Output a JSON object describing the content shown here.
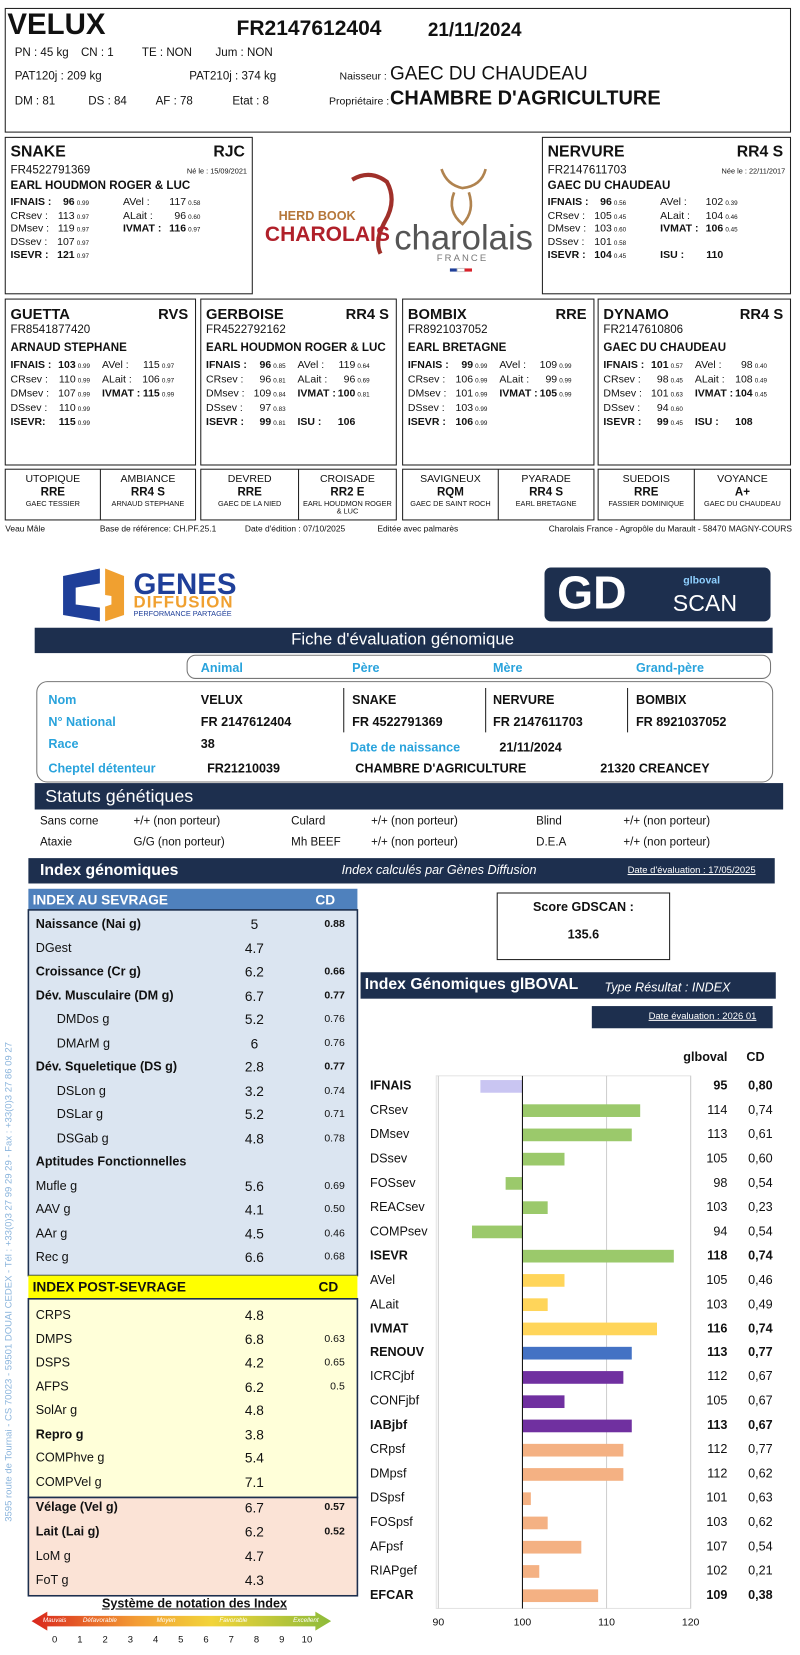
{
  "header": {
    "name": "VELUX",
    "national_id": "FR2147612404",
    "birth_date": "21/11/2024",
    "fields": [
      "PN : 45 kg",
      "CN : 1",
      "TE : NON",
      "Jum : NON",
      "PAT120j : 209 kg",
      "PAT210j : 374 kg",
      "DM : 81",
      "DS : 84",
      "AF : 78",
      "Etat : 8"
    ],
    "breeder_label": "Naisseur :",
    "breeder": "GAEC DU CHAUDEAU",
    "owner_label": "Propriétaire :",
    "owner": "CHAMBRE D'AGRICULTURE"
  },
  "pedigree": {
    "sire": {
      "name": "SNAKE",
      "code": "RJC",
      "id": "FR4522791369",
      "birth": "Né le : 15/09/2021",
      "breeder": "EARL HOUDMON ROGER & LUC",
      "left": [
        [
          "IFNAIS :",
          "96",
          "0.99"
        ],
        [
          "CRsev :",
          "113",
          "0.97"
        ],
        [
          "DMsev :",
          "119",
          "0.97"
        ],
        [
          "DSsev :",
          "107",
          "0.97"
        ],
        [
          "ISEVR :",
          "121",
          "0.97"
        ]
      ],
      "right": [
        [
          "AVel :",
          "117",
          "0.58"
        ],
        [
          "ALait :",
          "96",
          "0.60"
        ],
        [
          "IVMAT :",
          "116",
          "0.97"
        ]
      ]
    },
    "dam": {
      "name": "NERVURE",
      "code": "RR4 S",
      "id": "FR2147611703",
      "birth": "Née le : 22/11/2017",
      "breeder": "GAEC DU CHAUDEAU",
      "left": [
        [
          "IFNAIS :",
          "96",
          "0.56"
        ],
        [
          "CRsev :",
          "105",
          "0.45"
        ],
        [
          "DMsev :",
          "103",
          "0.60"
        ],
        [
          "DSsev :",
          "101",
          "0.58"
        ],
        [
          "ISEVR :",
          "104",
          "0.45"
        ]
      ],
      "right": [
        [
          "AVel :",
          "102",
          "0.39"
        ],
        [
          "ALait :",
          "104",
          "0.46"
        ],
        [
          "IVMAT :",
          "106",
          "0.45"
        ],
        [
          "ISU :",
          "110"
        ]
      ]
    },
    "grandparents": [
      {
        "name": "GUETTA",
        "code": "RVS",
        "id": "FR8541877420",
        "breeder": "ARNAUD STEPHANE",
        "left": [
          [
            "IFNAIS :",
            "103",
            "0.99"
          ],
          [
            "CRsev :",
            "110",
            "0.99"
          ],
          [
            "DMsev :",
            "107",
            "0.99"
          ],
          [
            "DSsev :",
            "110",
            "0.99"
          ],
          [
            "ISEVR:",
            "115",
            "0.99"
          ]
        ],
        "right": [
          [
            "AVel :",
            "115",
            "0.97"
          ],
          [
            "ALait :",
            "106",
            "0.97"
          ],
          [
            "IVMAT :",
            "115",
            "0.99"
          ]
        ]
      },
      {
        "name": "GERBOISE",
        "code": "RR4 S",
        "id": "FR4522792162",
        "breeder": "EARL HOUDMON ROGER & LUC",
        "left": [
          [
            "IFNAIS :",
            "96",
            "0.85"
          ],
          [
            "CRsev :",
            "96",
            "0.81"
          ],
          [
            "DMsev :",
            "109",
            "0.84"
          ],
          [
            "DSsev :",
            "97",
            "0.83"
          ],
          [
            "ISEVR :",
            "99",
            "0.81"
          ]
        ],
        "right": [
          [
            "AVel :",
            "119",
            "0.64"
          ],
          [
            "ALait :",
            "96",
            "0.69"
          ],
          [
            "IVMAT :",
            "100",
            "0.81"
          ],
          [
            "ISU :",
            "106"
          ]
        ]
      },
      {
        "name": "BOMBIX",
        "code": "RRE",
        "id": "FR8921037052",
        "breeder": "EARL BRETAGNE",
        "left": [
          [
            "IFNAIS :",
            "99",
            "0.99"
          ],
          [
            "CRsev :",
            "106",
            "0.99"
          ],
          [
            "DMsev :",
            "101",
            "0.99"
          ],
          [
            "DSsev :",
            "103",
            "0.99"
          ],
          [
            "ISEVR :",
            "106",
            "0.99"
          ]
        ],
        "right": [
          [
            "AVel :",
            "109",
            "0.99"
          ],
          [
            "ALait :",
            "99",
            "0.99"
          ],
          [
            "IVMAT :",
            "105",
            "0.99"
          ]
        ]
      },
      {
        "name": "DYNAMO",
        "code": "RR4 S",
        "id": "FR2147610806",
        "breeder": "GAEC DU CHAUDEAU",
        "left": [
          [
            "IFNAIS :",
            "101",
            "0.57"
          ],
          [
            "CRsev :",
            "98",
            "0.45"
          ],
          [
            "DMsev :",
            "101",
            "0.63"
          ],
          [
            "DSsev :",
            "94",
            "0.60"
          ],
          [
            "ISEVR :",
            "99",
            "0.45"
          ]
        ],
        "right": [
          [
            "AVel :",
            "98",
            "0.40"
          ],
          [
            "ALait :",
            "108",
            "0.49"
          ],
          [
            "IVMAT :",
            "104",
            "0.45"
          ],
          [
            "ISU :",
            "108"
          ]
        ]
      }
    ],
    "great_grandparents": [
      [
        "UTOPIQUE",
        "RRE",
        "GAEC TESSIER"
      ],
      [
        "AMBIANCE",
        "RR4 S",
        "ARNAUD STEPHANE"
      ],
      [
        "DEVRED",
        "RRE",
        "GAEC DE LA NIED"
      ],
      [
        "CROISADE",
        "RR2 E",
        "EARL HOUDMON ROGER & LUC"
      ],
      [
        "SAVIGNEUX",
        "RQM",
        "GAEC DE SAINT ROCH"
      ],
      [
        "PYARADE",
        "RR4 S",
        "EARL BRETAGNE"
      ],
      [
        "SUEDOIS",
        "RRE",
        "FASSIER DOMINIQUE"
      ],
      [
        "VOYANCE",
        "A+",
        "GAEC DU CHAUDEAU"
      ]
    ]
  },
  "logos": {
    "herd_book": "HERD BOOK",
    "charolais_red": "CHAROLAIS",
    "charolais": "charolais",
    "france": "FRANCE",
    "genes": "GENES",
    "diffusion": "DIFFUSION",
    "tagline": "PERFORMANCE PARTAGÉE",
    "gd": "GD",
    "scan": "SCAN",
    "gd_small": "glboval"
  },
  "footer": [
    "Veau Mâle",
    "Base de référence: CH.PF.25.1",
    "Date d'édition : 07/10/2025",
    "Editée avec palmarès",
    "Charolais France - Agropôle du Marault - 58470 MAGNY-COURS"
  ],
  "fiche": {
    "title": "Fiche d'évaluation génomique",
    "columns": [
      "Animal",
      "Père",
      "Mère",
      "Grand-père"
    ],
    "nom": {
      "label": "Nom",
      "values": [
        "VELUX",
        "SNAKE",
        "NERVURE",
        "BOMBIX"
      ]
    },
    "national": {
      "label": "N° National",
      "values": [
        "FR 2147612404",
        "FR 4522791369",
        "FR 2147611703",
        "FR 8921037052"
      ]
    },
    "race": {
      "label": "Race",
      "value": "38",
      "birth_label": "Date de naissance",
      "birth_value": "21/11/2024"
    },
    "cheptel": {
      "label": "Cheptel détenteur",
      "values": [
        "FR21210039",
        "CHAMBRE D'AGRICULTURE",
        "21320 CREANCEY"
      ]
    }
  },
  "statuts": {
    "title": "Statuts génétiques",
    "items": [
      [
        "Sans corne",
        "+/+ (non porteur)"
      ],
      [
        "Culard",
        "+/+ (non porteur)"
      ],
      [
        "Blind",
        "+/+ (non porteur)"
      ],
      [
        "Ataxie",
        "G/G (non porteur)"
      ],
      [
        "Mh BEEF",
        "+/+ (non porteur)"
      ],
      [
        "D.E.A",
        "+/+ (non porteur)"
      ]
    ]
  },
  "index_header": {
    "title": "Index génomiques",
    "subtitle": "Index calculés par Gènes Diffusion",
    "date": "Date d'évaluation : 17/05/2025"
  },
  "index_table": {
    "sevrage": {
      "title": "INDEX AU SEVRAGE",
      "cd": "CD",
      "rows": [
        [
          "Naissance (Nai g)",
          "5",
          "0.88"
        ],
        [
          "DGest",
          "4.7"
        ],
        [
          "Croissance (Cr g)",
          "6.2",
          "0.66"
        ],
        [
          "Dév. Musculaire (DM g)",
          "6.7",
          "0.77"
        ],
        [
          "DMDos g",
          "5.2",
          "0.76"
        ],
        [
          "DMArM g",
          "6",
          "0.76"
        ],
        [
          "Dév. Squeletique (DS g)",
          "2.8",
          "0.77"
        ],
        [
          "DSLon g",
          "3.2",
          "0.74"
        ],
        [
          "DSLar g",
          "5.2",
          "0.71"
        ],
        [
          "DSGab g",
          "4.8",
          "0.78"
        ],
        [
          "Aptitudes Fonctionnelles"
        ],
        [
          "Mufle g",
          "5.6",
          "0.69"
        ],
        [
          "AAV g",
          "4.1",
          "0.50"
        ],
        [
          "AAr g",
          "4.5",
          "0.46"
        ],
        [
          "Rec g",
          "6.6",
          "0.68"
        ]
      ]
    },
    "post_sevrage": {
      "title": "INDEX POST-SEVRAGE",
      "cd": "CD",
      "rows": [
        [
          "CRPS",
          "4.8"
        ],
        [
          "DMPS",
          "6.8",
          "0.63"
        ],
        [
          "DSPS",
          "4.2",
          "0.65"
        ],
        [
          "AFPS",
          "6.2",
          "0.5"
        ],
        [
          "SolAr g",
          "4.8"
        ],
        [
          "Repro g",
          "3.8"
        ],
        [
          "COMPhve g",
          "5.4"
        ],
        [
          "COMPVel g",
          "7.1"
        ]
      ]
    },
    "velage_rows": [
      [
        "Vélage (Vel g)",
        "6.7",
        "0.57"
      ],
      [
        "Lait (Lai g)",
        "6.2",
        "0.52"
      ],
      [
        "LoM g",
        "4.7"
      ],
      [
        "FoT g",
        "4.3"
      ]
    ]
  },
  "score": {
    "label": "Score GDSCAN :",
    "value": "135.6"
  },
  "chart_data": {
    "type": "bar",
    "orientation": "horizontal",
    "title": "Index Génomiques glBOVAL",
    "subtitle": "Type Résultat : INDEX",
    "date": "Date évaluation : 2026 01",
    "value_header": "glboval",
    "cd_header": "CD",
    "categories": [
      "IFNAIS",
      "CRsev",
      "DMsev",
      "DSsev",
      "FOSsev",
      "REACsev",
      "COMPsev",
      "ISEVR",
      "AVel",
      "ALait",
      "IVMAT",
      "RENOUV",
      "ICRCjbf",
      "CONFjbf",
      "IABjbf",
      "CRpsf",
      "DMpsf",
      "DSpsf",
      "FOSpsf",
      "AFpsf",
      "RIAPgef",
      "EFCAR"
    ],
    "values": [
      95,
      114,
      113,
      105,
      98,
      103,
      94,
      118,
      105,
      103,
      116,
      113,
      112,
      105,
      113,
      112,
      112,
      101,
      103,
      107,
      102,
      109
    ],
    "cd": [
      "0,80",
      "0,74",
      "0,61",
      "0,60",
      "0,54",
      "0,23",
      "0,54",
      "0,74",
      "0,46",
      "0,49",
      "0,74",
      "0,77",
      "0,67",
      "0,67",
      "0,67",
      "0,77",
      "0,62",
      "0,63",
      "0,62",
      "0,54",
      "0,21",
      "0,38"
    ],
    "colors": [
      "#c9c5f2",
      "#9bc96b",
      "#9bc96b",
      "#9bc96b",
      "#9bc96b",
      "#9bc96b",
      "#9bc96b",
      "#9bc96b",
      "#ffd55a",
      "#ffd55a",
      "#ffd55a",
      "#4472c4",
      "#7030a0",
      "#7030a0",
      "#7030a0",
      "#f4b183",
      "#f4b183",
      "#f4b183",
      "#f4b183",
      "#f4b183",
      "#f4b183",
      "#f4b183"
    ],
    "origin": 100,
    "xlim": [
      90,
      120
    ],
    "xticks": [
      90,
      100,
      110,
      120
    ]
  },
  "scale": {
    "title": "Système de notation des Index",
    "levels": [
      "Mauvais",
      "Défavorable",
      "Moyen",
      "Favorable",
      "Excellent"
    ],
    "numbers": [
      0,
      1,
      2,
      3,
      4,
      5,
      6,
      7,
      8,
      9,
      10
    ]
  },
  "address": "3595 route de Tournai - CS 70023 - 59501 DOUAI CEDEX - Tél : +33(0)3 27 99 29 29 - Fax : +33(0)3 27 86 09 27"
}
